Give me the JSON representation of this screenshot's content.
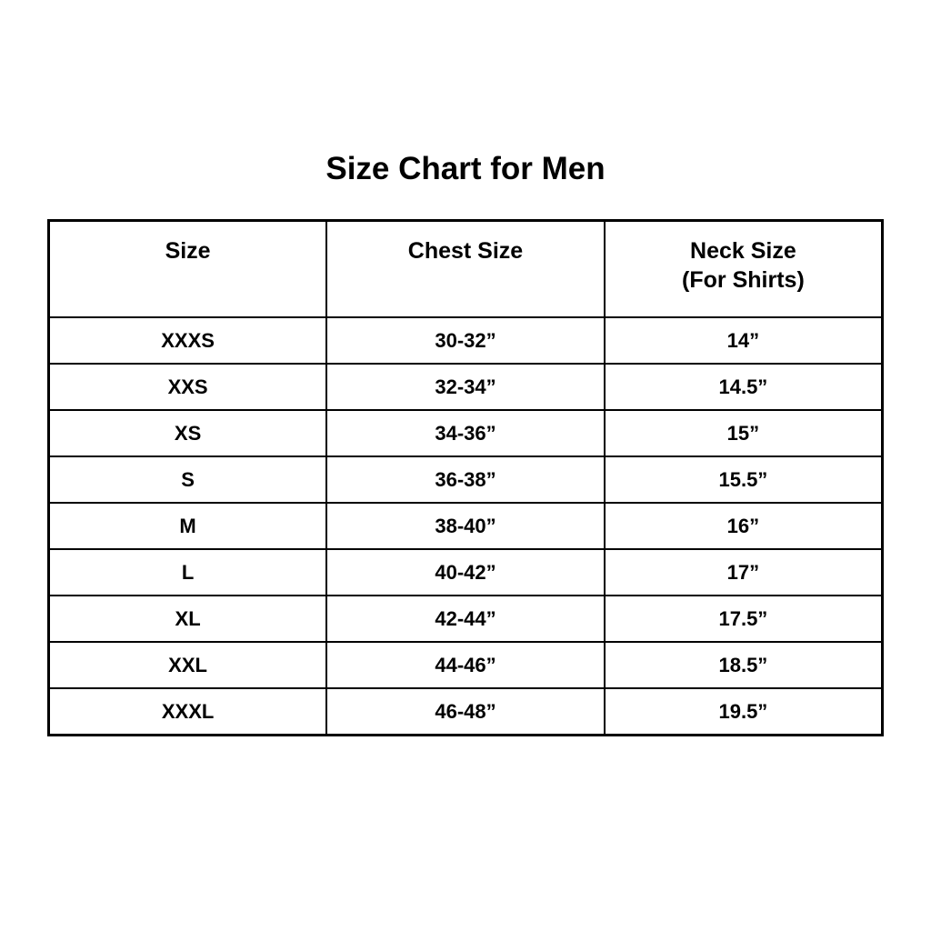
{
  "title": "Size Chart for Men",
  "colors": {
    "background": "#ffffff",
    "text": "#000000",
    "border": "#000000"
  },
  "table": {
    "headers": [
      {
        "label": "Size",
        "sublabel": ""
      },
      {
        "label": "Chest Size",
        "sublabel": ""
      },
      {
        "label": "Neck Size",
        "sublabel": "(For Shirts)"
      }
    ],
    "rows": [
      [
        "XXXS",
        "30-32”",
        "14”"
      ],
      [
        "XXS",
        "32-34”",
        "14.5”"
      ],
      [
        "XS",
        "34-36”",
        "15”"
      ],
      [
        "S",
        "36-38”",
        "15.5”"
      ],
      [
        "M",
        "38-40”",
        "16”"
      ],
      [
        "L",
        "40-42”",
        "17”"
      ],
      [
        "XL",
        "42-44”",
        "17.5”"
      ],
      [
        "XXL",
        "44-46”",
        "18.5”"
      ],
      [
        "XXXL",
        "46-48”",
        "19.5”"
      ]
    ]
  },
  "chart_data": {
    "type": "table",
    "title": "Size Chart for Men",
    "columns": [
      "Size",
      "Chest Size",
      "Neck Size (For Shirts)"
    ],
    "rows": [
      {
        "size": "XXXS",
        "chest_size_in": "30-32",
        "neck_size_in": "14"
      },
      {
        "size": "XXS",
        "chest_size_in": "32-34",
        "neck_size_in": "14.5"
      },
      {
        "size": "XS",
        "chest_size_in": "34-36",
        "neck_size_in": "15"
      },
      {
        "size": "S",
        "chest_size_in": "36-38",
        "neck_size_in": "15.5"
      },
      {
        "size": "M",
        "chest_size_in": "38-40",
        "neck_size_in": "16"
      },
      {
        "size": "L",
        "chest_size_in": "40-42",
        "neck_size_in": "17"
      },
      {
        "size": "XL",
        "chest_size_in": "42-44",
        "neck_size_in": "17.5"
      },
      {
        "size": "XXL",
        "chest_size_in": "44-46",
        "neck_size_in": "18.5"
      },
      {
        "size": "XXXL",
        "chest_size_in": "46-48",
        "neck_size_in": "19.5"
      }
    ]
  }
}
